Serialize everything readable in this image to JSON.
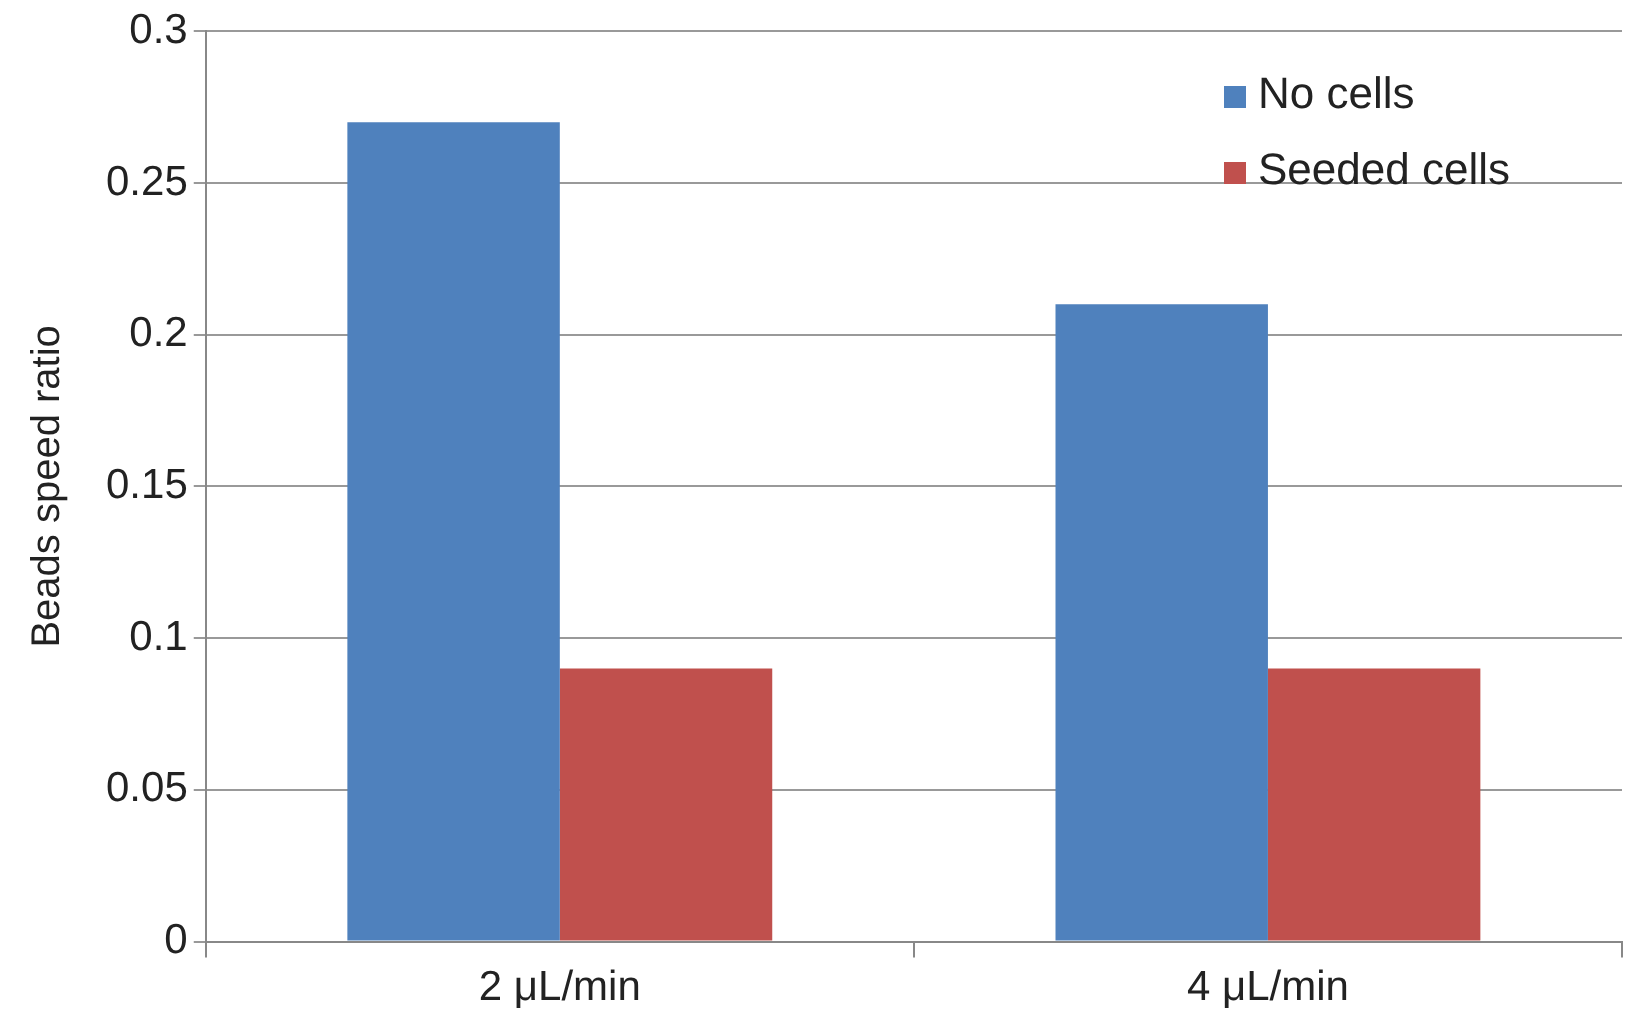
{
  "chart_data": {
    "type": "bar",
    "ylabel": "Beads speed ratio",
    "categories": [
      "2 μL/min",
      "4 μL/min"
    ],
    "series": [
      {
        "name": "No cells",
        "color": "#4f81bd",
        "values": [
          0.27,
          0.21
        ]
      },
      {
        "name": "Seeded cells",
        "color": "#c0504d",
        "values": [
          0.09,
          0.09
        ]
      }
    ],
    "ylim": [
      0,
      0.3
    ],
    "yticks": [
      0,
      0.05,
      0.1,
      0.15,
      0.2,
      0.25,
      0.3
    ],
    "grid": "y",
    "legend": "top right"
  }
}
